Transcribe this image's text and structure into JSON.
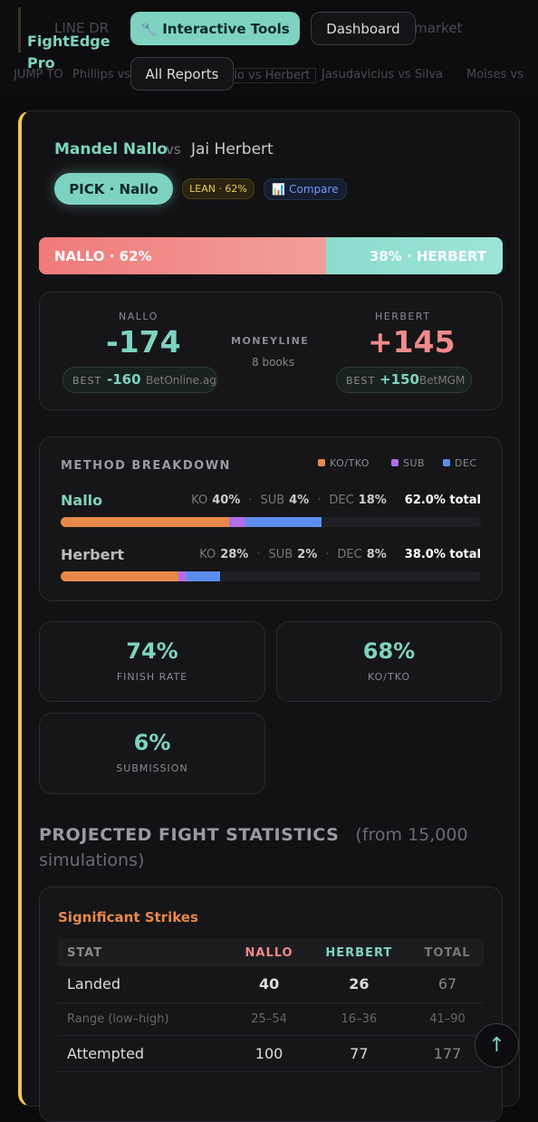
{
  "header": {
    "logo": "FightEdge Pro",
    "buttons": [
      "🔧 Interactive Tools",
      "Dashboard",
      "All Reports"
    ],
    "background_text": [
      "LINE DR",
      "qual market"
    ],
    "jump_label": "JUMP TO",
    "jump_links": [
      "Phillips vs",
      "Nallo vs Herbert",
      "Jasudavicius vs Silva",
      "Moises vs"
    ]
  },
  "fight": {
    "fighter_a": "Mandel Nallo",
    "vs": "vs",
    "fighter_b": "Jai Herbert",
    "pick": "PICK · Nallo",
    "lean": "LEAN · 62%",
    "compare": "📊 Compare",
    "split": {
      "left_label": "NALLO · 62%",
      "right_label": "38% · HERBERT",
      "left_share": 62
    },
    "odds": {
      "center_label": "MONEYLINE",
      "books": "8 books",
      "a": {
        "name": "NALLO",
        "line": "-174",
        "best_label": "BEST",
        "best": "-160",
        "book": "BetOnline.ag"
      },
      "b": {
        "name": "HERBERT",
        "line": "+145",
        "best_label": "BEST",
        "best": "+150",
        "book": "BetMGM"
      }
    },
    "method": {
      "title": "METHOD BREAKDOWN",
      "legend": [
        "KO/TKO",
        "SUB",
        "DEC"
      ],
      "rows": [
        {
          "name": "Nallo",
          "segments": [
            {
              "label": "KO",
              "value": 40,
              "value_label": "40%"
            },
            {
              "label": "SUB",
              "value": 4,
              "value_label": "4%"
            },
            {
              "label": "DEC",
              "value": 18,
              "value_label": "18%"
            }
          ],
          "total": "62.0% total"
        },
        {
          "name": "Herbert",
          "segments": [
            {
              "label": "KO",
              "value": 28,
              "value_label": "28%"
            },
            {
              "label": "SUB",
              "value": 2,
              "value_label": "2%"
            },
            {
              "label": "DEC",
              "value": 8,
              "value_label": "8%"
            }
          ],
          "total": "38.0% total"
        }
      ]
    },
    "stats": [
      {
        "value": "74%",
        "label": "FINISH RATE"
      },
      {
        "value": "68%",
        "label": "KO/TKO"
      },
      {
        "value": "6%",
        "label": "SUBMISSION"
      }
    ]
  },
  "projection": {
    "title": "PROJECTED FIGHT STATISTICS",
    "subtitle": "(from 15,000 simulations)",
    "table": {
      "title": "Significant Strikes",
      "columns": [
        "STAT",
        "NALLO",
        "HERBERT",
        "TOTAL"
      ],
      "rows": [
        [
          "Landed",
          "40",
          "26",
          "67"
        ],
        [
          "Range (low–high)",
          "25–54",
          "16–36",
          "41–90"
        ],
        [
          "Attempted",
          "100",
          "77",
          "177"
        ]
      ]
    }
  }
}
